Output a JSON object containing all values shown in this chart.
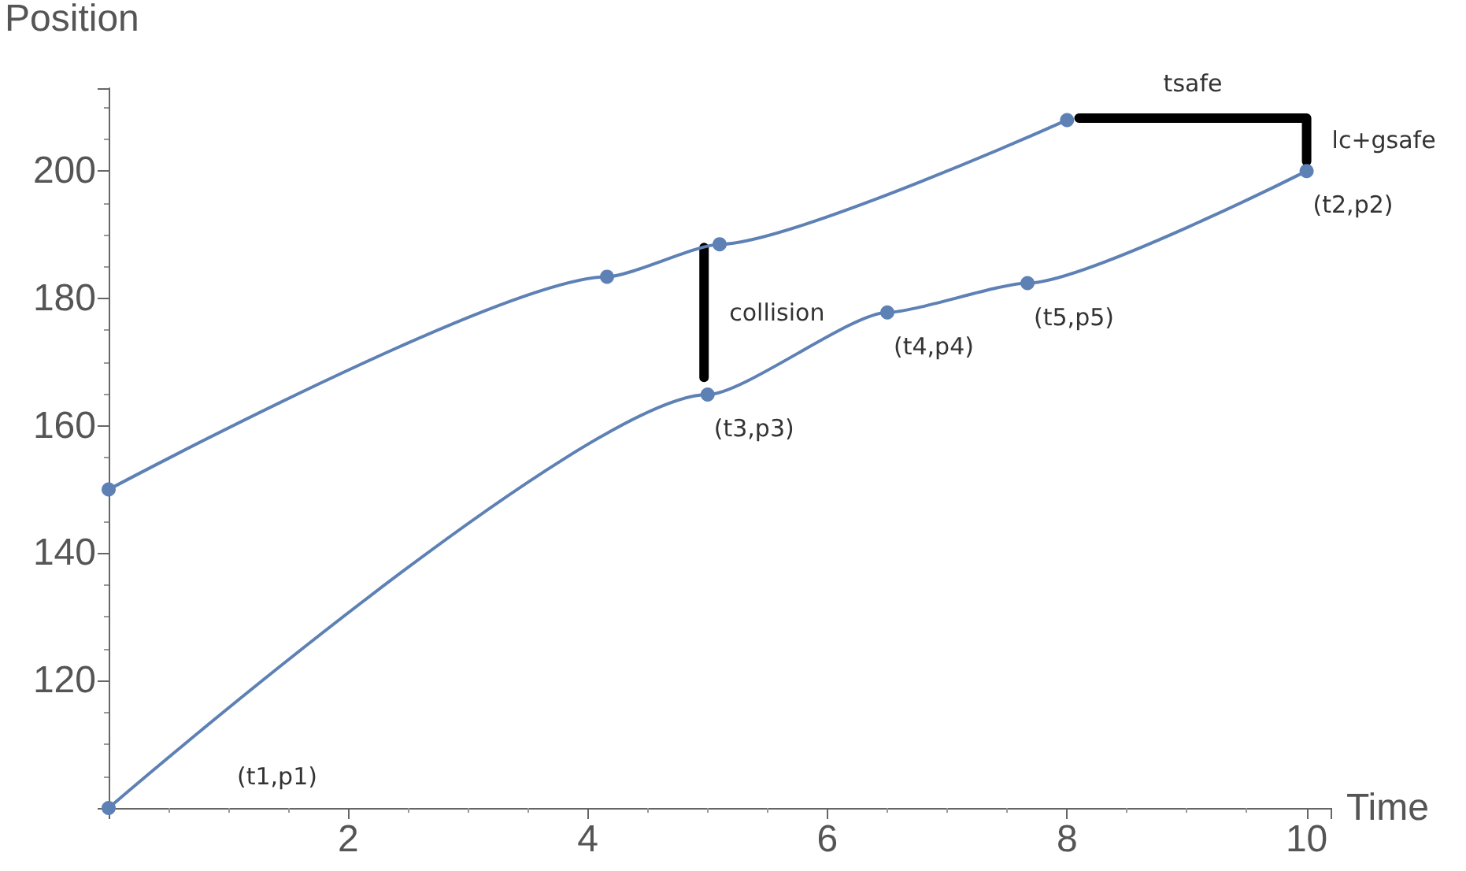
{
  "chart_data": {
    "type": "line",
    "xlabel": "Time",
    "ylabel": "Position",
    "xlim": [
      0,
      10.2
    ],
    "ylim": [
      100,
      213
    ],
    "xticks": [
      {
        "value": 0,
        "label": null
      },
      2,
      4,
      6,
      8,
      10
    ],
    "yticks": [
      {
        "value": 100,
        "label": null
      },
      120,
      140,
      160,
      180,
      200
    ],
    "grid": false,
    "marker": "circle",
    "series": [
      {
        "color": "#5e81b5",
        "x": [
          0,
          4.16,
          5.1,
          8.0
        ],
        "values": [
          150,
          183.4,
          188.5,
          208
        ]
      },
      {
        "color": "#5e81b5",
        "x": [
          0,
          5.0,
          6.5,
          7.67,
          10
        ],
        "values": [
          100,
          164.9,
          177.8,
          182.4,
          200
        ]
      },
      {
        "color": "#000000",
        "marker": "none",
        "x": [
          4.97,
          4.97
        ],
        "values": [
          188,
          167.6
        ]
      },
      {
        "color": "#000000",
        "marker": "none",
        "x": [
          8.1,
          10,
          10
        ],
        "values": [
          208.3,
          208.3,
          201.5
        ]
      }
    ],
    "annotations": [
      "(t1,p1)",
      {
        "text": "(t3,p3)",
        "x": 5.0,
        "y": 164.9
      },
      {
        "text": "(t4,p4)",
        "x": 6.5,
        "y": 177.8
      },
      {
        "text": "(t5,p5)",
        "x": 7.67,
        "y": 182.4
      },
      {
        "text": "(t2,p2)",
        "x": 10,
        "y": 200
      },
      {
        "text": "collision",
        "x": 4.97,
        "y": 177.8
      },
      {
        "text": "tsafe",
        "x": 9.05,
        "y": 208.3
      },
      {
        "text": "lc+gsafe",
        "x": 10,
        "y": 204.9
      }
    ]
  }
}
